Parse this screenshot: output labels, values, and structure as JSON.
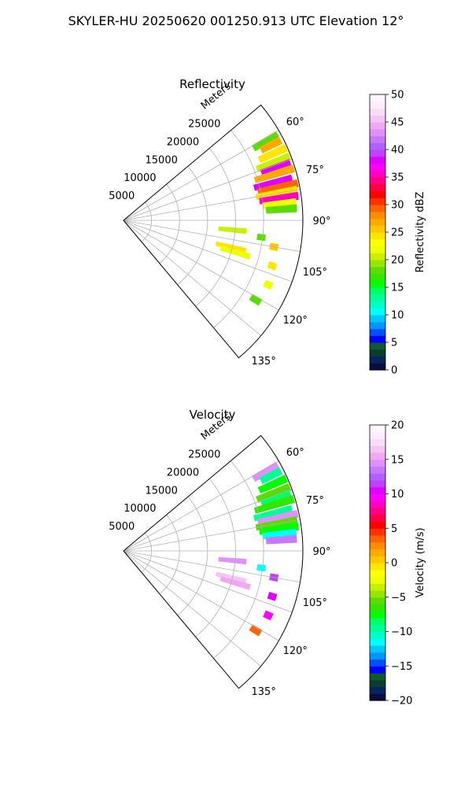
{
  "figure": {
    "title": "SKYLER-HU  20250620  001250.913 UTC Elevation 12°"
  },
  "chart_data": [
    {
      "type": "heatmap",
      "projection": "polar-sector",
      "title": "Reflectivity",
      "range_label": "Meters",
      "theta_range_deg": [
        50,
        140
      ],
      "r_max": 32000,
      "range_ticks": [
        5000,
        10000,
        15000,
        20000,
        25000
      ],
      "range_tick_labels": [
        "5000",
        "10000",
        "15000",
        "20000",
        "25000"
      ],
      "angle_ticks": [
        60,
        75,
        90,
        105,
        120,
        135
      ],
      "angle_tick_labels": [
        "60°",
        "75°",
        "90°",
        "105°",
        "120°",
        "135°"
      ],
      "grid": true,
      "colorbar": {
        "label": "Reflectivity dBZ",
        "vmin": 0,
        "vmax": 50,
        "ticks": [
          0,
          5,
          10,
          15,
          20,
          25,
          30,
          35,
          40,
          45,
          50
        ],
        "tick_labels": [
          "0",
          "5",
          "10",
          "15",
          "20",
          "25",
          "30",
          "35",
          "40",
          "45",
          "50"
        ],
        "colors": [
          "#0b0b40",
          "#06245e",
          "#0a3c32",
          "#0f5a28",
          "#0000ff",
          "#0050ff",
          "#0096ff",
          "#00c8ff",
          "#00ffff",
          "#00ffc8",
          "#00ff96",
          "#00ff64",
          "#00ff00",
          "#32e600",
          "#5adc00",
          "#96e600",
          "#c8f000",
          "#eeff00",
          "#ffff00",
          "#ffe600",
          "#ffc800",
          "#ffaa00",
          "#ff8c00",
          "#ff6400",
          "#ff3200",
          "#ff0000",
          "#ff0040",
          "#ff0080",
          "#ff00c0",
          "#ff00ff",
          "#e000ff",
          "#c040ff",
          "#b060ff",
          "#c878ff",
          "#e090ff",
          "#f0a8f0",
          "#f4c4f4",
          "#f8dcf8",
          "#fcecfc",
          "#fff6ff"
        ]
      },
      "echoes": [
        {
          "az": 61,
          "r_min": 26500,
          "r_max": 31500,
          "value": 18
        },
        {
          "az": 63,
          "r_min": 27500,
          "r_max": 31500,
          "value": 27
        },
        {
          "az": 66,
          "r_min": 26500,
          "r_max": 31800,
          "value": 24
        },
        {
          "az": 69,
          "r_min": 25500,
          "r_max": 31800,
          "value": 20
        },
        {
          "az": 71,
          "r_min": 26000,
          "r_max": 31500,
          "value": 38
        },
        {
          "az": 73,
          "r_min": 24500,
          "r_max": 31800,
          "value": 27
        },
        {
          "az": 76,
          "r_min": 24000,
          "r_max": 31000,
          "value": 38
        },
        {
          "az": 78,
          "r_min": 24500,
          "r_max": 31800,
          "value": 29
        },
        {
          "az": 80,
          "r_min": 24000,
          "r_max": 31500,
          "value": 24
        },
        {
          "az": 82,
          "r_min": 24500,
          "r_max": 31500,
          "value": 36
        },
        {
          "az": 84,
          "r_min": 25000,
          "r_max": 31000,
          "value": 22
        },
        {
          "az": 86,
          "r_min": 25500,
          "r_max": 31000,
          "value": 18
        },
        {
          "az": 95,
          "r_min": 17000,
          "r_max": 22000,
          "value": 20
        },
        {
          "az": 97,
          "r_min": 24000,
          "r_max": 25500,
          "value": 18
        },
        {
          "az": 100,
          "r_min": 26500,
          "r_max": 28000,
          "value": 26
        },
        {
          "az": 104,
          "r_min": 17000,
          "r_max": 22500,
          "value": 24
        },
        {
          "az": 106,
          "r_min": 18000,
          "r_max": 23500,
          "value": 22
        },
        {
          "az": 107,
          "r_min": 27000,
          "r_max": 28500,
          "value": 24
        },
        {
          "az": 114,
          "r_min": 27500,
          "r_max": 29000,
          "value": 22
        },
        {
          "az": 121,
          "r_min": 26500,
          "r_max": 28500,
          "value": 18
        }
      ]
    },
    {
      "type": "heatmap",
      "projection": "polar-sector",
      "title": "Velocity",
      "range_label": "Meters",
      "theta_range_deg": [
        50,
        140
      ],
      "r_max": 32000,
      "range_ticks": [
        5000,
        10000,
        15000,
        20000,
        25000
      ],
      "range_tick_labels": [
        "5000",
        "10000",
        "15000",
        "20000",
        "25000"
      ],
      "angle_ticks": [
        60,
        75,
        90,
        105,
        120,
        135
      ],
      "angle_tick_labels": [
        "60°",
        "75°",
        "90°",
        "105°",
        "120°",
        "135°"
      ],
      "grid": true,
      "colorbar": {
        "label": "Velocity (m/s)",
        "vmin": -20,
        "vmax": 20,
        "ticks": [
          -20,
          -15,
          -10,
          -5,
          0,
          5,
          10,
          15,
          20
        ],
        "tick_labels": [
          "−20",
          "−15",
          "−10",
          "−5",
          "0",
          "5",
          "10",
          "15",
          "20"
        ],
        "colors": [
          "#0b0b40",
          "#06245e",
          "#0a3c32",
          "#0f5a28",
          "#0000ff",
          "#0050ff",
          "#0096ff",
          "#00c8ff",
          "#00ffff",
          "#00ffc8",
          "#00ff96",
          "#00ff64",
          "#00ff00",
          "#32e600",
          "#5adc00",
          "#96e600",
          "#c8f000",
          "#eeff00",
          "#ffff00",
          "#ffe600",
          "#ffc800",
          "#ffaa00",
          "#ff8c00",
          "#ff6400",
          "#ff3200",
          "#ff0000",
          "#ff0040",
          "#ff0080",
          "#ff00c0",
          "#ff00ff",
          "#e000ff",
          "#c040ff",
          "#b060ff",
          "#c878ff",
          "#e090ff",
          "#f0a8f0",
          "#f4c4f4",
          "#f8dcf8",
          "#fcecfc",
          "#fff6ff"
        ]
      },
      "echoes": [
        {
          "az": 61,
          "r_min": 26500,
          "r_max": 31500,
          "value": 14
        },
        {
          "az": 63,
          "r_min": 27500,
          "r_max": 31500,
          "value": -10
        },
        {
          "az": 66,
          "r_min": 26500,
          "r_max": 31800,
          "value": -8
        },
        {
          "az": 69,
          "r_min": 25500,
          "r_max": 31800,
          "value": -6
        },
        {
          "az": 71,
          "r_min": 26000,
          "r_max": 31500,
          "value": -9
        },
        {
          "az": 73,
          "r_min": 24500,
          "r_max": 31800,
          "value": -7
        },
        {
          "az": 76,
          "r_min": 24000,
          "r_max": 31000,
          "value": -10
        },
        {
          "az": 78,
          "r_min": 24500,
          "r_max": 31800,
          "value": 14
        },
        {
          "az": 80,
          "r_min": 24000,
          "r_max": 31500,
          "value": -6
        },
        {
          "az": 82,
          "r_min": 24500,
          "r_max": 31500,
          "value": -8
        },
        {
          "az": 84,
          "r_min": 25000,
          "r_max": 31000,
          "value": -12
        },
        {
          "az": 86,
          "r_min": 25500,
          "r_max": 31000,
          "value": 13
        },
        {
          "az": 95,
          "r_min": 17000,
          "r_max": 22000,
          "value": 14
        },
        {
          "az": 97,
          "r_min": 24000,
          "r_max": 25500,
          "value": -12
        },
        {
          "az": 100,
          "r_min": 26500,
          "r_max": 28000,
          "value": 11
        },
        {
          "az": 104,
          "r_min": 17000,
          "r_max": 22500,
          "value": 16
        },
        {
          "az": 106,
          "r_min": 18000,
          "r_max": 23500,
          "value": 15
        },
        {
          "az": 107,
          "r_min": 27000,
          "r_max": 28500,
          "value": 10
        },
        {
          "az": 114,
          "r_min": 27500,
          "r_max": 29000,
          "value": 9
        },
        {
          "az": 121,
          "r_min": 26500,
          "r_max": 28500,
          "value": 3
        }
      ]
    }
  ]
}
